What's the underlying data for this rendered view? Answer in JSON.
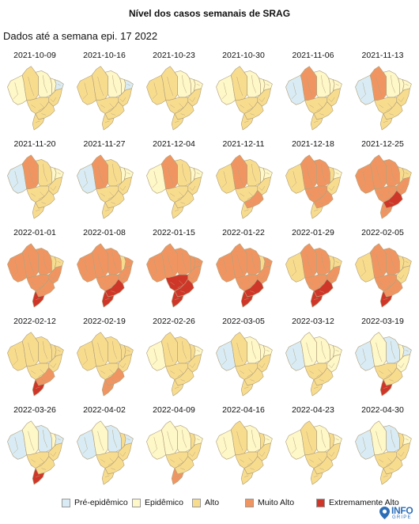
{
  "title": "Nível dos casos semanais de SRAG",
  "subtitle": "Dados até a semana epi. 17 2022",
  "logo": {
    "name": "INFO",
    "sub": "GRIPE"
  },
  "colors": {
    "pre": "#d9ecf5",
    "epi": "#fef7c8",
    "alto": "#f8dc8e",
    "muito": "#f09561",
    "extremo": "#cf3628",
    "border": "#b3a37e",
    "logo": "#2d6fb7"
  },
  "chart_data": {
    "type": "choropleth-small-multiples",
    "levels": [
      "Pré-epidêmico",
      "Epidêmico",
      "Alto",
      "Muito Alto",
      "Extremamente Alto"
    ],
    "level_keys": [
      "pre",
      "epi",
      "alto",
      "muito",
      "extremo"
    ],
    "legend_placement": "bottom",
    "regions": [
      "Norte-Oeste",
      "Amazonas",
      "Pará",
      "Maranhão/Piauí",
      "Nordeste",
      "Bahia",
      "Centro-Oeste",
      "Sudeste",
      "Sul"
    ],
    "weeks": [
      {
        "date": "2021-10-09",
        "levels": {
          "Norte-Oeste": "epi",
          "Amazonas": "alto",
          "Pará": "epi",
          "Maranhão/Piauí": "epi",
          "Nordeste": "pre",
          "Bahia": "alto",
          "Centro-Oeste": "alto",
          "Sudeste": "alto",
          "Sul": "alto"
        }
      },
      {
        "date": "2021-10-16",
        "levels": {
          "Norte-Oeste": "alto",
          "Amazonas": "alto",
          "Pará": "epi",
          "Maranhão/Piauí": "epi",
          "Nordeste": "pre",
          "Bahia": "alto",
          "Centro-Oeste": "alto",
          "Sudeste": "alto",
          "Sul": "alto"
        }
      },
      {
        "date": "2021-10-23",
        "levels": {
          "Norte-Oeste": "alto",
          "Amazonas": "alto",
          "Pará": "epi",
          "Maranhão/Piauí": "epi",
          "Nordeste": "epi",
          "Bahia": "alto",
          "Centro-Oeste": "alto",
          "Sudeste": "alto",
          "Sul": "alto"
        }
      },
      {
        "date": "2021-10-30",
        "levels": {
          "Norte-Oeste": "epi",
          "Amazonas": "alto",
          "Pará": "epi",
          "Maranhão/Piauí": "epi",
          "Nordeste": "epi",
          "Bahia": "alto",
          "Centro-Oeste": "alto",
          "Sudeste": "alto",
          "Sul": "alto"
        }
      },
      {
        "date": "2021-11-06",
        "levels": {
          "Norte-Oeste": "pre",
          "Amazonas": "muito",
          "Pará": "epi",
          "Maranhão/Piauí": "epi",
          "Nordeste": "epi",
          "Bahia": "alto",
          "Centro-Oeste": "alto",
          "Sudeste": "alto",
          "Sul": "alto"
        }
      },
      {
        "date": "2021-11-13",
        "levels": {
          "Norte-Oeste": "pre",
          "Amazonas": "muito",
          "Pará": "epi",
          "Maranhão/Piauí": "epi",
          "Nordeste": "epi",
          "Bahia": "alto",
          "Centro-Oeste": "alto",
          "Sudeste": "alto",
          "Sul": "alto"
        }
      },
      {
        "date": "2021-11-20",
        "levels": {
          "Norte-Oeste": "pre",
          "Amazonas": "muito",
          "Pará": "alto",
          "Maranhão/Piauí": "epi",
          "Nordeste": "epi",
          "Bahia": "alto",
          "Centro-Oeste": "alto",
          "Sudeste": "alto",
          "Sul": "alto"
        }
      },
      {
        "date": "2021-11-27",
        "levels": {
          "Norte-Oeste": "pre",
          "Amazonas": "muito",
          "Pará": "alto",
          "Maranhão/Piauí": "epi",
          "Nordeste": "epi",
          "Bahia": "alto",
          "Centro-Oeste": "alto",
          "Sudeste": "alto",
          "Sul": "alto"
        }
      },
      {
        "date": "2021-12-04",
        "levels": {
          "Norte-Oeste": "epi",
          "Amazonas": "muito",
          "Pará": "alto",
          "Maranhão/Piauí": "epi",
          "Nordeste": "epi",
          "Bahia": "alto",
          "Centro-Oeste": "alto",
          "Sudeste": "alto",
          "Sul": "alto"
        }
      },
      {
        "date": "2021-12-11",
        "levels": {
          "Norte-Oeste": "alto",
          "Amazonas": "muito",
          "Pará": "alto",
          "Maranhão/Piauí": "epi",
          "Nordeste": "epi",
          "Bahia": "alto",
          "Centro-Oeste": "alto",
          "Sudeste": "muito",
          "Sul": "alto"
        }
      },
      {
        "date": "2021-12-18",
        "levels": {
          "Norte-Oeste": "alto",
          "Amazonas": "muito",
          "Pará": "muito",
          "Maranhão/Piauí": "alto",
          "Nordeste": "epi",
          "Bahia": "alto",
          "Centro-Oeste": "muito",
          "Sudeste": "muito",
          "Sul": "alto"
        }
      },
      {
        "date": "2021-12-25",
        "levels": {
          "Norte-Oeste": "muito",
          "Amazonas": "muito",
          "Pará": "muito",
          "Maranhão/Piauí": "alto",
          "Nordeste": "alto",
          "Bahia": "muito",
          "Centro-Oeste": "muito",
          "Sudeste": "extremo",
          "Sul": "muito"
        }
      },
      {
        "date": "2022-01-01",
        "levels": {
          "Norte-Oeste": "muito",
          "Amazonas": "muito",
          "Pará": "muito",
          "Maranhão/Piauí": "alto",
          "Nordeste": "alto",
          "Bahia": "muito",
          "Centro-Oeste": "muito",
          "Sudeste": "muito",
          "Sul": "extremo"
        }
      },
      {
        "date": "2022-01-08",
        "levels": {
          "Norte-Oeste": "muito",
          "Amazonas": "muito",
          "Pará": "muito",
          "Maranhão/Piauí": "alto",
          "Nordeste": "muito",
          "Bahia": "muito",
          "Centro-Oeste": "muito",
          "Sudeste": "extremo",
          "Sul": "extremo"
        }
      },
      {
        "date": "2022-01-15",
        "levels": {
          "Norte-Oeste": "muito",
          "Amazonas": "muito",
          "Pará": "muito",
          "Maranhão/Piauí": "muito",
          "Nordeste": "muito",
          "Bahia": "muito",
          "Centro-Oeste": "extremo",
          "Sudeste": "extremo",
          "Sul": "extremo"
        }
      },
      {
        "date": "2022-01-22",
        "levels": {
          "Norte-Oeste": "muito",
          "Amazonas": "muito",
          "Pará": "muito",
          "Maranhão/Piauí": "alto",
          "Nordeste": "muito",
          "Bahia": "muito",
          "Centro-Oeste": "muito",
          "Sudeste": "extremo",
          "Sul": "extremo"
        }
      },
      {
        "date": "2022-01-29",
        "levels": {
          "Norte-Oeste": "alto",
          "Amazonas": "muito",
          "Pará": "muito",
          "Maranhão/Piauí": "alto",
          "Nordeste": "alto",
          "Bahia": "muito",
          "Centro-Oeste": "muito",
          "Sudeste": "extremo",
          "Sul": "extremo"
        }
      },
      {
        "date": "2022-02-05",
        "levels": {
          "Norte-Oeste": "alto",
          "Amazonas": "muito",
          "Pará": "muito",
          "Maranhão/Piauí": "alto",
          "Nordeste": "alto",
          "Bahia": "alto",
          "Centro-Oeste": "muito",
          "Sudeste": "muito",
          "Sul": "extremo"
        }
      },
      {
        "date": "2022-02-12",
        "levels": {
          "Norte-Oeste": "alto",
          "Amazonas": "alto",
          "Pará": "alto",
          "Maranhão/Piauí": "alto",
          "Nordeste": "alto",
          "Bahia": "alto",
          "Centro-Oeste": "alto",
          "Sudeste": "muito",
          "Sul": "extremo"
        }
      },
      {
        "date": "2022-02-19",
        "levels": {
          "Norte-Oeste": "alto",
          "Amazonas": "alto",
          "Pará": "alto",
          "Maranhão/Piauí": "alto",
          "Nordeste": "alto",
          "Bahia": "alto",
          "Centro-Oeste": "alto",
          "Sudeste": "muito",
          "Sul": "muito"
        }
      },
      {
        "date": "2022-02-26",
        "levels": {
          "Norte-Oeste": "epi",
          "Amazonas": "alto",
          "Pará": "alto",
          "Maranhão/Piauí": "alto",
          "Nordeste": "epi",
          "Bahia": "alto",
          "Centro-Oeste": "alto",
          "Sudeste": "alto",
          "Sul": "alto"
        }
      },
      {
        "date": "2022-03-05",
        "levels": {
          "Norte-Oeste": "pre",
          "Amazonas": "alto",
          "Pará": "epi",
          "Maranhão/Piauí": "epi",
          "Nordeste": "epi",
          "Bahia": "alto",
          "Centro-Oeste": "alto",
          "Sudeste": "alto",
          "Sul": "alto"
        }
      },
      {
        "date": "2022-03-12",
        "levels": {
          "Norte-Oeste": "pre",
          "Amazonas": "epi",
          "Pará": "epi",
          "Maranhão/Piauí": "epi",
          "Nordeste": "epi",
          "Bahia": "epi",
          "Centro-Oeste": "alto",
          "Sudeste": "alto",
          "Sul": "alto"
        }
      },
      {
        "date": "2022-03-19",
        "levels": {
          "Norte-Oeste": "pre",
          "Amazonas": "epi",
          "Pará": "pre",
          "Maranhão/Piauí": "epi",
          "Nordeste": "pre",
          "Bahia": "epi",
          "Centro-Oeste": "alto",
          "Sudeste": "alto",
          "Sul": "extremo"
        }
      },
      {
        "date": "2022-03-26",
        "levels": {
          "Norte-Oeste": "pre",
          "Amazonas": "epi",
          "Pará": "pre",
          "Maranhão/Piauí": "epi",
          "Nordeste": "pre",
          "Bahia": "alto",
          "Centro-Oeste": "alto",
          "Sudeste": "alto",
          "Sul": "extremo"
        }
      },
      {
        "date": "2022-04-02",
        "levels": {
          "Norte-Oeste": "pre",
          "Amazonas": "epi",
          "Pará": "pre",
          "Maranhão/Piauí": "alto",
          "Nordeste": "pre",
          "Bahia": "alto",
          "Centro-Oeste": "alto",
          "Sudeste": "alto",
          "Sul": "alto"
        }
      },
      {
        "date": "2022-04-09",
        "levels": {
          "Norte-Oeste": "epi",
          "Amazonas": "epi",
          "Pará": "epi",
          "Maranhão/Piauí": "alto",
          "Nordeste": "epi",
          "Bahia": "alto",
          "Centro-Oeste": "alto",
          "Sudeste": "alto",
          "Sul": "muito"
        }
      },
      {
        "date": "2022-04-16",
        "levels": {
          "Norte-Oeste": "epi",
          "Amazonas": "alto",
          "Pará": "epi",
          "Maranhão/Piauí": "alto",
          "Nordeste": "epi",
          "Bahia": "alto",
          "Centro-Oeste": "alto",
          "Sudeste": "alto",
          "Sul": "alto"
        }
      },
      {
        "date": "2022-04-23",
        "levels": {
          "Norte-Oeste": "epi",
          "Amazonas": "alto",
          "Pará": "epi",
          "Maranhão/Piauí": "alto",
          "Nordeste": "epi",
          "Bahia": "alto",
          "Centro-Oeste": "alto",
          "Sudeste": "alto",
          "Sul": "alto"
        }
      },
      {
        "date": "2022-04-30",
        "levels": {
          "Norte-Oeste": "pre",
          "Amazonas": "epi",
          "Pará": "pre",
          "Maranhão/Piauí": "alto",
          "Nordeste": "epi",
          "Bahia": "alto",
          "Centro-Oeste": "alto",
          "Sudeste": "alto",
          "Sul": "alto"
        }
      }
    ]
  }
}
